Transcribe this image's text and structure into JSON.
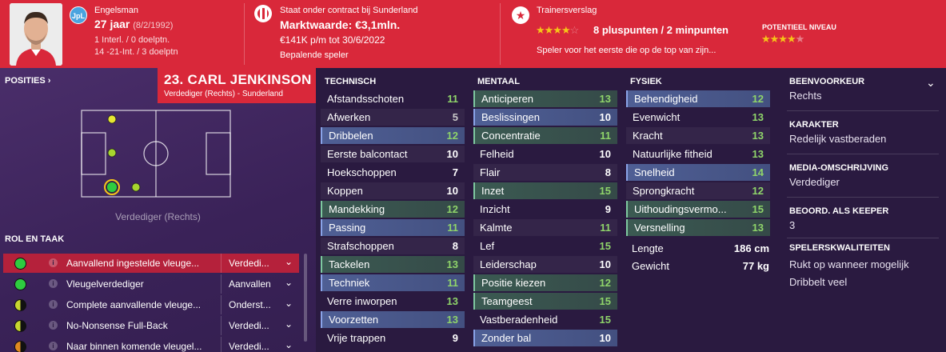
{
  "header": {
    "nationality": "Engelsman",
    "nation_badge": "JpL",
    "age": "27 jaar",
    "dob": "(8/2/1992)",
    "intl": "1 Interl. / 0 doelptn.",
    "u21": "14 -21-Int. / 3 doelptn",
    "contract_label": "Staat onder contract bij Sunderland",
    "market_value": "Marktwaarde: €3,1mln.",
    "wage": "€141K p/m tot 30/6/2022",
    "status": "Bepalende speler",
    "report_label": "Trainersverslag",
    "points": "8 pluspunten / 2 minpunten",
    "potential_label": "POTENTIEEL NIVEAU",
    "report_text": "Speler voor het eerste die op de top van zijn...",
    "current_stars": "★★★★",
    "current_dim": "☆",
    "potential_stars": "★★★★",
    "potential_dim": "★"
  },
  "player": {
    "name": "23. CARL JENKINSON",
    "subtitle": "Verdediger (Rechts) - Sunderland"
  },
  "positions": {
    "label": "POSITIES ›",
    "caption": "Verdediger (Rechts)"
  },
  "roles": {
    "title": "ROL EN TAAK",
    "items": [
      {
        "name": "Aanvallend ingestelde vleuge...",
        "duty": "Verdedi...",
        "color": "#2ecc40"
      },
      {
        "name": "Vleugelverdediger",
        "duty": "Aanvallen",
        "color": "#2ecc40"
      },
      {
        "name": "Complete aanvallende vleuge...",
        "duty": "Onderst...",
        "color": "#c8d630"
      },
      {
        "name": "No-Nonsense Full-Back",
        "duty": "Verdedi...",
        "color": "#c8d630"
      },
      {
        "name": "Naar binnen komende vleugel...",
        "duty": "Verdedi...",
        "color": "#e08a20"
      }
    ]
  },
  "attributes": {
    "technical": {
      "title": "TECHNISCH",
      "items": [
        {
          "name": "Afstandsschoten",
          "value": "11"
        },
        {
          "name": "Afwerken",
          "value": "5"
        },
        {
          "name": "Dribbelen",
          "value": "12"
        },
        {
          "name": "Eerste balcontact",
          "value": "10"
        },
        {
          "name": "Hoekschoppen",
          "value": "7"
        },
        {
          "name": "Koppen",
          "value": "10"
        },
        {
          "name": "Mandekking",
          "value": "12"
        },
        {
          "name": "Passing",
          "value": "11"
        },
        {
          "name": "Strafschoppen",
          "value": "8"
        },
        {
          "name": "Tackelen",
          "value": "13"
        },
        {
          "name": "Techniek",
          "value": "11"
        },
        {
          "name": "Verre inworpen",
          "value": "13"
        },
        {
          "name": "Voorzetten",
          "value": "13"
        },
        {
          "name": "Vrije trappen",
          "value": "9"
        }
      ]
    },
    "mental": {
      "title": "MENTAAL",
      "items": [
        {
          "name": "Anticiperen",
          "value": "13"
        },
        {
          "name": "Beslissingen",
          "value": "10"
        },
        {
          "name": "Concentratie",
          "value": "11"
        },
        {
          "name": "Felheid",
          "value": "10"
        },
        {
          "name": "Flair",
          "value": "8"
        },
        {
          "name": "Inzet",
          "value": "15"
        },
        {
          "name": "Inzicht",
          "value": "9"
        },
        {
          "name": "Kalmte",
          "value": "11"
        },
        {
          "name": "Lef",
          "value": "15"
        },
        {
          "name": "Leiderschap",
          "value": "10"
        },
        {
          "name": "Positie kiezen",
          "value": "12"
        },
        {
          "name": "Teamgeest",
          "value": "15"
        },
        {
          "name": "Vastberadenheid",
          "value": "15"
        },
        {
          "name": "Zonder bal",
          "value": "10"
        }
      ]
    },
    "physical": {
      "title": "FYSIEK",
      "items": [
        {
          "name": "Behendigheid",
          "value": "12"
        },
        {
          "name": "Evenwicht",
          "value": "13"
        },
        {
          "name": "Kracht",
          "value": "13"
        },
        {
          "name": "Natuurlijke fitheid",
          "value": "13"
        },
        {
          "name": "Snelheid",
          "value": "14"
        },
        {
          "name": "Sprongkracht",
          "value": "12"
        },
        {
          "name": "Uithoudingsvermo...",
          "value": "15"
        },
        {
          "name": "Versnelling",
          "value": "13"
        }
      ],
      "height_label": "Lengte",
      "height": "186 cm",
      "weight_label": "Gewicht",
      "weight": "77 kg"
    }
  },
  "info": {
    "foot_title": "BEENVOORKEUR",
    "foot": "Rechts",
    "character_title": "KARAKTER",
    "character": "Redelijk vastberaden",
    "media_title": "MEDIA-OMSCHRIJVING",
    "media": "Verdediger",
    "keeper_title": "BEOORD. ALS KEEPER",
    "keeper": "3",
    "traits_title": "SPELERSKWALITEITEN",
    "traits": [
      "Rukt op wanneer mogelijk",
      "Dribbelt veel"
    ]
  }
}
